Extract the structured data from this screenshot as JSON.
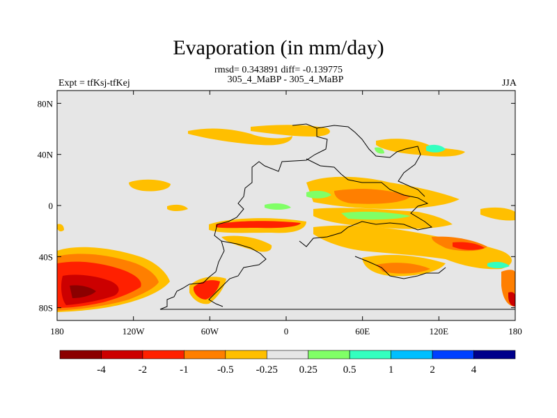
{
  "title": "Evaporation (in mm/day)",
  "stats": "rmsd= 0.343891 diff= -0.139775",
  "subtitle": "305_4_MaBP - 305_4_MaBP",
  "expt": "Expt = tfKsj-tfKej",
  "season": "JJA",
  "x_ticks": [
    {
      "lon": -180,
      "label": "180"
    },
    {
      "lon": -120,
      "label": "120W"
    },
    {
      "lon": -60,
      "label": "60W"
    },
    {
      "lon": 0,
      "label": "0"
    },
    {
      "lon": 60,
      "label": "60E"
    },
    {
      "lon": 120,
      "label": "120E"
    },
    {
      "lon": 180,
      "label": "180"
    }
  ],
  "y_ticks": [
    {
      "lat": 80,
      "label": "80N"
    },
    {
      "lat": 40,
      "label": "40N"
    },
    {
      "lat": 0,
      "label": "0"
    },
    {
      "lat": -40,
      "label": "40S"
    },
    {
      "lat": -80,
      "label": "80S"
    }
  ],
  "colorbar": {
    "colors": [
      "#8b0000",
      "#cc0000",
      "#ff2000",
      "#ff7f00",
      "#ffbf00",
      "#e6e6e6",
      "#80ff66",
      "#33ffbf",
      "#00bfff",
      "#0040ff",
      "#00008b"
    ],
    "labels": [
      "-4",
      "-2",
      "-1",
      "-0.5",
      "-0.25",
      "0.25",
      "0.5",
      "1",
      "2",
      "4"
    ]
  },
  "colors": {
    "background": "#e6e6e6",
    "coast": "#000000"
  }
}
